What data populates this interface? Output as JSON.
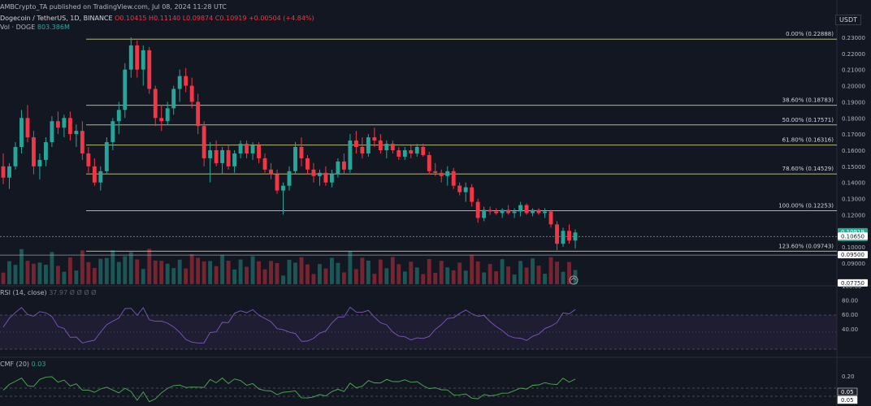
{
  "header": {
    "published": "AMBCrypto_TA published on TradingView.com, Jul 08, 2024 11:28 UTC",
    "symbol": "Dogecoin / TetherUS, 1D, BINANCE",
    "ohlc": "O0.10415  H0.11140  L0.09874  C0.10919  +0.00504 (+4.84%)",
    "volume_label": "Vol · DOGE",
    "volume_value": "803.386M"
  },
  "currency_badge": "USDT",
  "colors": {
    "background": "#131722",
    "bull": "#26a69a",
    "bear": "#f23645",
    "fib_line": "#c9cf86",
    "rsi_band": "#7e57c2"
  },
  "price_axis": {
    "ticks": [
      "0.23000",
      "0.22000",
      "0.21000",
      "0.20000",
      "0.19000",
      "0.18000",
      "0.17000",
      "0.16000",
      "0.15000",
      "0.14000",
      "0.13000",
      "0.12000",
      "0.11000",
      "0.10000",
      "0.09000"
    ],
    "range": [
      0.087,
      0.233
    ]
  },
  "price_tags": [
    {
      "text": "0.10919",
      "sub": "12:31:13",
      "price": 0.10919,
      "color": "#22ab94"
    },
    {
      "text": "0.10650",
      "price": 0.1065,
      "color": "#ffffff"
    },
    {
      "text": "0.09500",
      "price": 0.095,
      "color": "#ffffff"
    },
    {
      "text": "0.07750",
      "price": 0.0775,
      "color": "#ffffff"
    }
  ],
  "fib_levels": [
    {
      "label": "0.00% (0.22888)",
      "price": 0.22888
    },
    {
      "label": "38.60% (0.18783)",
      "price": 0.18783
    },
    {
      "label": "50.00% (0.17571)",
      "price": 0.17571
    },
    {
      "label": "61.80% (0.16316)",
      "price": 0.16316
    },
    {
      "label": "78.60% (0.14529)",
      "price": 0.14529
    },
    {
      "label": "100.00% (0.12253)",
      "price": 0.12253
    },
    {
      "label": "123.60% (0.09743)",
      "price": 0.09743
    }
  ],
  "rsi": {
    "label": "RSI (14, close)",
    "value": "37.97",
    "nan": "Ø Ø Ø Ø",
    "ticks": [
      "100.00",
      "80.00",
      "60.00",
      "40.00"
    ]
  },
  "cmf": {
    "label": "CMF (20)",
    "value": "0.03",
    "ticks": [
      "0.20"
    ],
    "tags": [
      "0.05",
      "0.05"
    ]
  },
  "chart_data": {
    "type": "candlestick",
    "title": "Dogecoin / TetherUS, 1D, BINANCE",
    "candles": [
      [
        0.15,
        0.158,
        0.139,
        0.143
      ],
      [
        0.143,
        0.152,
        0.136,
        0.15
      ],
      [
        0.15,
        0.165,
        0.148,
        0.162
      ],
      [
        0.162,
        0.185,
        0.158,
        0.18
      ],
      [
        0.18,
        0.188,
        0.165,
        0.168
      ],
      [
        0.168,
        0.172,
        0.145,
        0.15
      ],
      [
        0.15,
        0.158,
        0.142,
        0.154
      ],
      [
        0.154,
        0.168,
        0.15,
        0.165
      ],
      [
        0.165,
        0.181,
        0.162,
        0.178
      ],
      [
        0.178,
        0.184,
        0.17,
        0.174
      ],
      [
        0.174,
        0.182,
        0.168,
        0.18
      ],
      [
        0.18,
        0.184,
        0.166,
        0.17
      ],
      [
        0.17,
        0.176,
        0.162,
        0.172
      ],
      [
        0.172,
        0.178,
        0.154,
        0.158
      ],
      [
        0.158,
        0.162,
        0.146,
        0.15
      ],
      [
        0.15,
        0.155,
        0.138,
        0.14
      ],
      [
        0.14,
        0.15,
        0.135,
        0.147
      ],
      [
        0.147,
        0.168,
        0.145,
        0.165
      ],
      [
        0.165,
        0.18,
        0.16,
        0.178
      ],
      [
        0.178,
        0.19,
        0.17,
        0.185
      ],
      [
        0.185,
        0.214,
        0.18,
        0.21
      ],
      [
        0.21,
        0.23,
        0.205,
        0.225
      ],
      [
        0.225,
        0.228,
        0.205,
        0.21
      ],
      [
        0.21,
        0.225,
        0.2,
        0.222
      ],
      [
        0.222,
        0.224,
        0.195,
        0.198
      ],
      [
        0.198,
        0.2,
        0.175,
        0.18
      ],
      [
        0.18,
        0.188,
        0.172,
        0.178
      ],
      [
        0.178,
        0.19,
        0.176,
        0.186
      ],
      [
        0.186,
        0.2,
        0.182,
        0.198
      ],
      [
        0.198,
        0.21,
        0.19,
        0.206
      ],
      [
        0.206,
        0.211,
        0.196,
        0.2
      ],
      [
        0.2,
        0.205,
        0.186,
        0.19
      ],
      [
        0.19,
        0.195,
        0.17,
        0.175
      ],
      [
        0.175,
        0.178,
        0.15,
        0.155
      ],
      [
        0.155,
        0.165,
        0.14,
        0.16
      ],
      [
        0.16,
        0.166,
        0.15,
        0.152
      ],
      [
        0.152,
        0.162,
        0.145,
        0.16
      ],
      [
        0.16,
        0.163,
        0.148,
        0.15
      ],
      [
        0.15,
        0.16,
        0.146,
        0.158
      ],
      [
        0.158,
        0.166,
        0.155,
        0.164
      ],
      [
        0.164,
        0.166,
        0.155,
        0.158
      ],
      [
        0.158,
        0.165,
        0.154,
        0.163
      ],
      [
        0.163,
        0.165,
        0.152,
        0.155
      ],
      [
        0.155,
        0.158,
        0.146,
        0.148
      ],
      [
        0.148,
        0.152,
        0.142,
        0.145
      ],
      [
        0.145,
        0.148,
        0.133,
        0.135
      ],
      [
        0.135,
        0.14,
        0.12,
        0.138
      ],
      [
        0.138,
        0.15,
        0.135,
        0.147
      ],
      [
        0.147,
        0.165,
        0.145,
        0.162
      ],
      [
        0.162,
        0.168,
        0.15,
        0.155
      ],
      [
        0.155,
        0.157,
        0.145,
        0.148
      ],
      [
        0.148,
        0.152,
        0.14,
        0.144
      ],
      [
        0.144,
        0.148,
        0.138,
        0.146
      ],
      [
        0.146,
        0.15,
        0.138,
        0.14
      ],
      [
        0.14,
        0.148,
        0.137,
        0.145
      ],
      [
        0.145,
        0.155,
        0.143,
        0.153
      ],
      [
        0.153,
        0.158,
        0.145,
        0.148
      ],
      [
        0.148,
        0.17,
        0.146,
        0.166
      ],
      [
        0.166,
        0.172,
        0.158,
        0.162
      ],
      [
        0.162,
        0.168,
        0.155,
        0.158
      ],
      [
        0.158,
        0.17,
        0.156,
        0.168
      ],
      [
        0.168,
        0.174,
        0.162,
        0.166
      ],
      [
        0.166,
        0.17,
        0.158,
        0.16
      ],
      [
        0.16,
        0.166,
        0.155,
        0.164
      ],
      [
        0.164,
        0.166,
        0.158,
        0.16
      ],
      [
        0.16,
        0.162,
        0.154,
        0.156
      ],
      [
        0.156,
        0.162,
        0.154,
        0.16
      ],
      [
        0.16,
        0.163,
        0.155,
        0.158
      ],
      [
        0.158,
        0.164,
        0.156,
        0.162
      ],
      [
        0.162,
        0.164,
        0.156,
        0.157
      ],
      [
        0.157,
        0.159,
        0.145,
        0.147
      ],
      [
        0.147,
        0.152,
        0.144,
        0.146
      ],
      [
        0.146,
        0.148,
        0.14,
        0.144
      ],
      [
        0.144,
        0.15,
        0.138,
        0.147
      ],
      [
        0.147,
        0.149,
        0.136,
        0.138
      ],
      [
        0.138,
        0.14,
        0.132,
        0.134
      ],
      [
        0.134,
        0.14,
        0.128,
        0.137
      ],
      [
        0.137,
        0.139,
        0.125,
        0.128
      ],
      [
        0.128,
        0.13,
        0.115,
        0.118
      ],
      [
        0.118,
        0.125,
        0.116,
        0.123
      ],
      [
        0.123,
        0.125,
        0.12,
        0.122
      ],
      [
        0.122,
        0.124,
        0.12,
        0.121
      ],
      [
        0.121,
        0.124,
        0.118,
        0.123
      ],
      [
        0.123,
        0.126,
        0.12,
        0.121
      ],
      [
        0.121,
        0.124,
        0.118,
        0.122
      ],
      [
        0.122,
        0.128,
        0.119,
        0.126
      ],
      [
        0.126,
        0.127,
        0.12,
        0.121
      ],
      [
        0.121,
        0.124,
        0.119,
        0.123
      ],
      [
        0.123,
        0.124,
        0.12,
        0.121
      ],
      [
        0.121,
        0.124,
        0.118,
        0.122
      ],
      [
        0.122,
        0.123,
        0.112,
        0.114
      ],
      [
        0.114,
        0.116,
        0.098,
        0.102
      ],
      [
        0.102,
        0.112,
        0.1,
        0.11
      ],
      [
        0.11,
        0.114,
        0.102,
        0.104
      ],
      [
        0.104,
        0.111,
        0.099,
        0.109
      ]
    ]
  }
}
